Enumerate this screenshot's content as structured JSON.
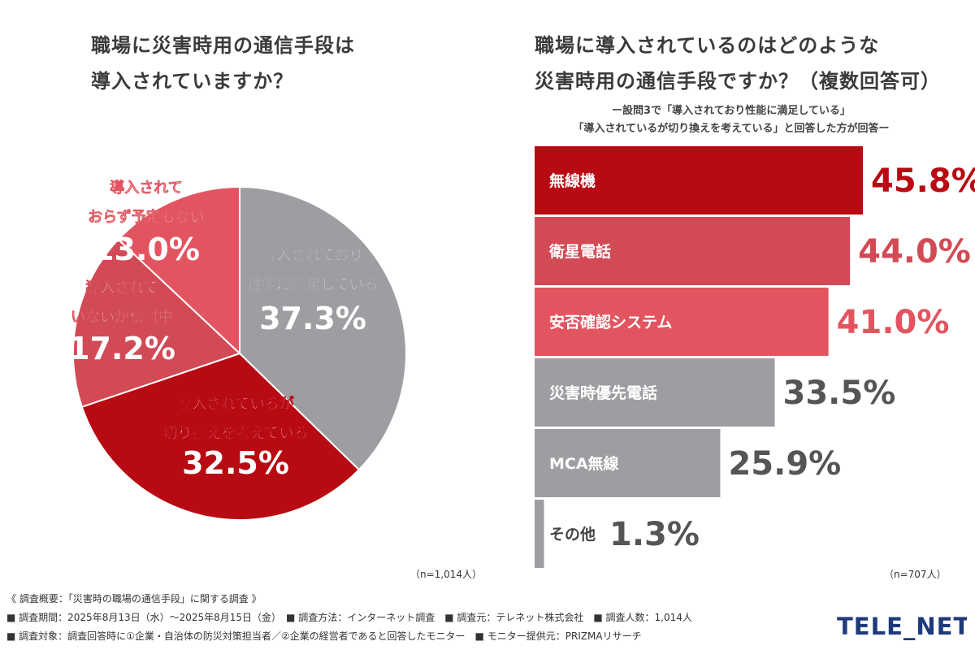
{
  "left_title": [
    "職場に災害時用の通信手段は",
    "導入されていますか？"
  ],
  "right_title": [
    "職場に導入されているのはどのような",
    "災害時用の通信手段ですか？（複数回答可）"
  ],
  "right_subtitle": [
    "ー設問3で「導入されており性能に満足している」",
    "「導入されているが切り換えを考えている」と回答した方が回答ー"
  ],
  "left_n": "（n=1,014人）",
  "right_n": "（n=707人）",
  "footer": [
    "《 調査概要：「災害時の職場の通信手段」に関する調査 》",
    "■ 調査期間：2025年8月13日（水）～2025年8月15日（金）　■ 調査方法：インターネット調査　■ 調査元：テレネット株式会社　■ 調査人数：1,014人",
    "■ 調査対象：調査回答時に①企業・自治体の防災対策担当者／②企業の経営者であると回答したモニター　■ モニター提供元：PRIZMAリサーチ"
  ],
  "logo_text": "TELE_NET",
  "colors": {
    "dark_red": "#b80a12",
    "mid_red": "#d24a55",
    "light_red": "#e25560",
    "gray": "#9e9ea2"
  },
  "chart_data": [
    {
      "type": "pie",
      "slices": [
        {
          "label_lines": [
            "導入されており",
            "性能に満足している"
          ],
          "value": 37.3,
          "value_label": "37.3%",
          "color": "#9e9ea2",
          "text_color": "#ffffff"
        },
        {
          "label_lines": [
            "導入されているが",
            "切り換えを考えている"
          ],
          "value": 32.5,
          "value_label": "32.5%",
          "color": "#b80a12",
          "text_color": "#ffffff"
        },
        {
          "label_lines": [
            "導入されて",
            "いないが検討中"
          ],
          "value": 17.2,
          "value_label": "17.2%",
          "color": "#d24a55",
          "text_color": "#ffffff"
        },
        {
          "label_lines": [
            "導入されて",
            "おらず予定もない"
          ],
          "value": 13.0,
          "value_label": "13.0%",
          "color": "#e25560",
          "text_color": "#ffffff"
        }
      ]
    },
    {
      "type": "bar",
      "orientation": "horizontal",
      "categories": [
        "無線機",
        "衛星電話",
        "安否確認システム",
        "災害時優先電話",
        "MCA無線",
        "その他"
      ],
      "values": [
        45.8,
        44.0,
        41.0,
        33.5,
        25.9,
        1.3
      ],
      "value_labels": [
        "45.8%",
        "44.0%",
        "41.0%",
        "33.5%",
        "25.9%",
        "1.3%"
      ],
      "bar_colors": [
        "#b80a12",
        "#d24a55",
        "#e25560",
        "#9e9ea2",
        "#9e9ea2",
        "#9e9ea2"
      ],
      "value_colors": [
        "#b80a12",
        "#d24a55",
        "#e25560",
        "#555555",
        "#555555",
        "#555555"
      ],
      "xlim": [
        0,
        50
      ]
    }
  ]
}
